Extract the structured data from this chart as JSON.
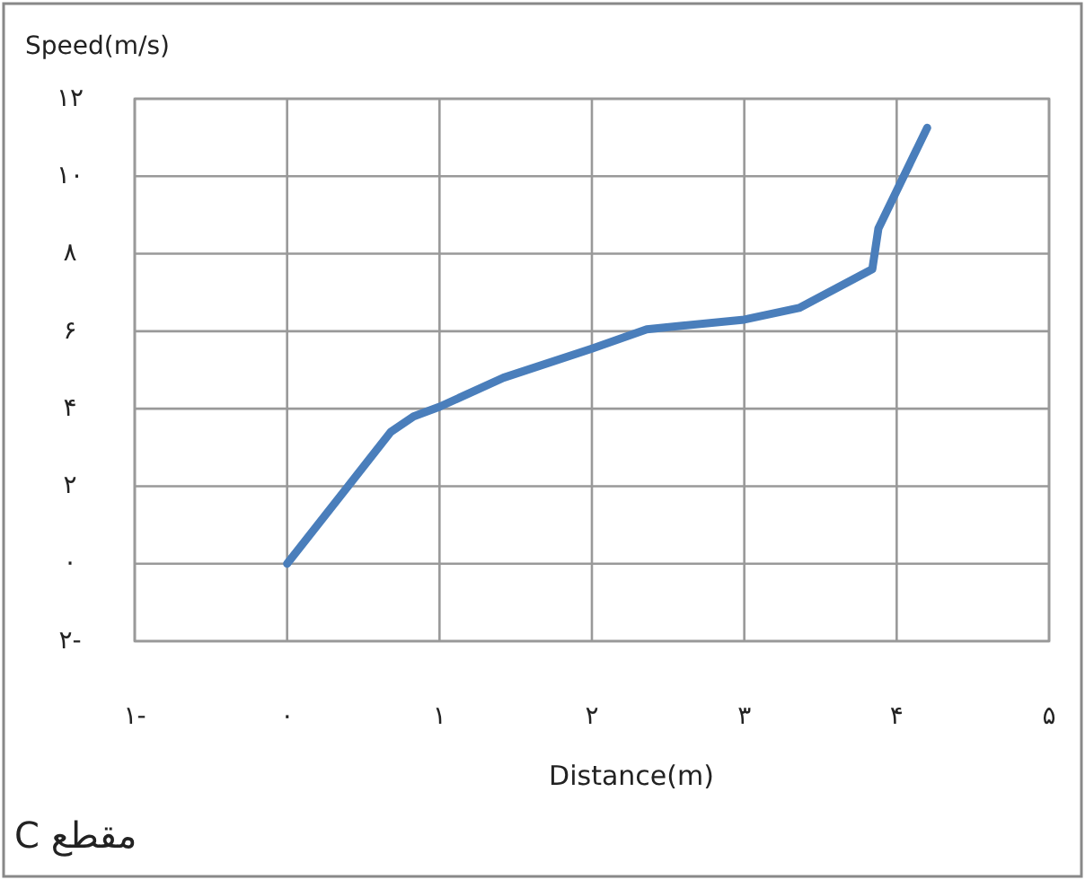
{
  "chart_data": {
    "type": "line",
    "xlabel": "Distance(m)",
    "ylabel": "Speed(m/s)",
    "annotations": [
      "مقطع C"
    ],
    "x": [
      0,
      0.4,
      0.68,
      0.83,
      1.0,
      1.42,
      2.0,
      2.36,
      3.0,
      3.36,
      3.84,
      3.88,
      4.2
    ],
    "series": [
      {
        "color": "#4a7ebb",
        "values": [
          0,
          2.0,
          3.4,
          3.8,
          4.05,
          4.8,
          5.55,
          6.05,
          6.3,
          6.6,
          7.6,
          8.65,
          11.25
        ]
      }
    ],
    "xlim": [
      -1,
      5
    ],
    "xticks": [
      {
        "value": -1,
        "label": "۱-"
      },
      {
        "value": 0,
        "label": "۰"
      },
      {
        "value": 1,
        "label": "۱"
      },
      {
        "value": 2,
        "label": "۲"
      },
      {
        "value": 3,
        "label": "۳"
      },
      {
        "value": 4,
        "label": "۴"
      },
      {
        "value": 5,
        "label": "۵"
      }
    ],
    "ylim": [
      -2,
      12
    ],
    "yticks": [
      {
        "value": -2,
        "label": "۲-"
      },
      {
        "value": 0,
        "label": "۰"
      },
      {
        "value": 2,
        "label": "۲"
      },
      {
        "value": 4,
        "label": "۴"
      },
      {
        "value": 6,
        "label": "۶"
      },
      {
        "value": 8,
        "label": "۸"
      },
      {
        "value": 10,
        "label": "۱۰"
      },
      {
        "value": 12,
        "label": "۱۲"
      }
    ],
    "grid": true,
    "marker": "none",
    "line_style": "solid"
  }
}
